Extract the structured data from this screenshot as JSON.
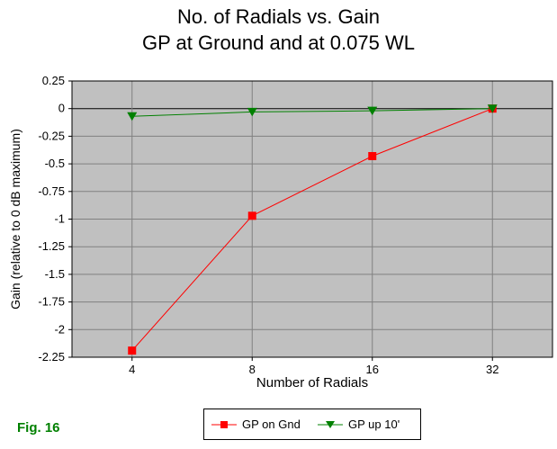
{
  "title_line1": "No. of Radials vs. Gain",
  "title_line2": "GP at Ground and at 0.075 WL",
  "figure_label": "Fig. 16",
  "chart_data": {
    "type": "line",
    "categories": [
      "4",
      "8",
      "16",
      "32"
    ],
    "xlabel": "Number of Radials",
    "ylabel": "Gain (relative to 0 dB maximum)",
    "ylim": [
      -2.25,
      0.25
    ],
    "ytick_step": 0.25,
    "ytick_labels": [
      "0.25",
      "0",
      "-0.25",
      "-0.5",
      "-0.75",
      "-1",
      "-1.25",
      "-1.5",
      "-1.75",
      "-2",
      "-2.25"
    ],
    "grid": true,
    "legend_position": "bottom-center",
    "series": [
      {
        "name": "GP on Gnd",
        "values": [
          -2.19,
          -0.97,
          -0.43,
          0.0
        ],
        "color": "#ff0000",
        "marker": "square"
      },
      {
        "name": "GP up 10'",
        "values": [
          -0.07,
          -0.03,
          -0.02,
          0.0
        ],
        "color": "#008000",
        "marker": "triangle-down"
      }
    ],
    "colors": {
      "plot_background": "#c0c0c0",
      "grid": "#808080",
      "zero_line": "#000000"
    }
  }
}
